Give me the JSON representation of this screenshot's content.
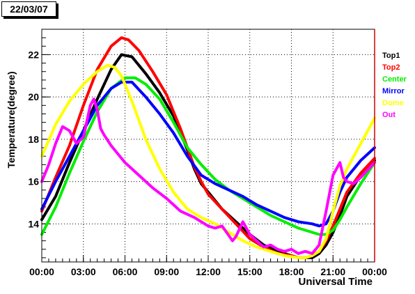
{
  "date_label": "22/03/07",
  "chart_data": {
    "type": "line",
    "title": "",
    "xlabel": "Universal Time",
    "ylabel": "Temperature(degree)",
    "xlim": [
      "00:00",
      "24:00"
    ],
    "ylim": [
      12.2,
      23.2
    ],
    "x_tick_labels": [
      "00:00",
      "03:00",
      "06:00",
      "09:00",
      "12:00",
      "15:00",
      "18:00",
      "21:00",
      "00:00"
    ],
    "y_ticks": [
      14,
      16,
      18,
      20,
      22
    ],
    "grid": true,
    "legend_position": "right",
    "series": [
      {
        "name": "Top1",
        "color": "#000000",
        "x": [
          "00:00",
          "01:00",
          "02:00",
          "03:00",
          "04:00",
          "05:00",
          "05:45",
          "06:30",
          "07:30",
          "08:30",
          "09:30",
          "10:00",
          "10:30",
          "11:00",
          "11:30",
          "12:00",
          "13:00",
          "14:00",
          "15:00",
          "16:00",
          "17:00",
          "18:00",
          "18:30",
          "19:00",
          "19:30",
          "20:00",
          "20:30",
          "21:00",
          "21:30",
          "22:00",
          "23:00",
          "24:00"
        ],
        "y": [
          14.2,
          15.3,
          16.9,
          18.4,
          19.9,
          21.3,
          22.0,
          21.9,
          21.1,
          20.2,
          19.1,
          18.3,
          17.5,
          16.6,
          15.9,
          15.5,
          14.7,
          14.1,
          13.5,
          13.0,
          12.7,
          12.5,
          12.4,
          12.4,
          12.4,
          12.6,
          13.0,
          13.6,
          14.4,
          15.3,
          16.3,
          17.0
        ]
      },
      {
        "name": "Top2",
        "color": "#ff0000",
        "x": [
          "00:00",
          "01:00",
          "02:00",
          "03:00",
          "04:00",
          "05:00",
          "05:45",
          "06:15",
          "07:00",
          "08:00",
          "09:00",
          "09:30",
          "10:00",
          "10:30",
          "11:00",
          "11:30",
          "12:00",
          "13:00",
          "14:00",
          "15:00",
          "16:00",
          "17:00",
          "18:00",
          "18:30",
          "19:00",
          "19:30",
          "20:00",
          "20:30",
          "21:00",
          "21:30",
          "22:00",
          "23:00",
          "24:00"
        ],
        "y": [
          14.6,
          16.2,
          17.7,
          19.6,
          21.3,
          22.4,
          22.8,
          22.7,
          22.2,
          21.2,
          20.1,
          19.3,
          18.5,
          17.6,
          16.7,
          16.0,
          15.4,
          14.7,
          14.0,
          13.3,
          12.9,
          12.6,
          12.5,
          12.4,
          12.4,
          12.5,
          12.7,
          13.2,
          13.9,
          14.7,
          15.5,
          16.4,
          17.1
        ]
      },
      {
        "name": "Center",
        "color": "#00ee00",
        "x": [
          "00:00",
          "01:00",
          "02:00",
          "03:00",
          "04:00",
          "05:00",
          "06:00",
          "06:45",
          "07:30",
          "08:30",
          "09:30",
          "10:30",
          "11:30",
          "12:30",
          "13:30",
          "14:30",
          "15:30",
          "16:30",
          "17:30",
          "18:30",
          "19:30",
          "20:00",
          "20:30",
          "21:00",
          "21:30",
          "22:00",
          "23:00",
          "24:00"
        ],
        "y": [
          13.5,
          14.8,
          16.4,
          17.9,
          19.3,
          20.4,
          20.9,
          20.9,
          20.6,
          19.9,
          18.8,
          17.6,
          16.8,
          16.1,
          15.6,
          15.2,
          14.8,
          14.4,
          14.1,
          13.8,
          13.6,
          13.5,
          13.5,
          13.7,
          14.2,
          14.8,
          15.9,
          16.9
        ]
      },
      {
        "name": "Mirror",
        "color": "#0000ff",
        "x": [
          "00:00",
          "01:00",
          "02:00",
          "03:00",
          "04:00",
          "05:00",
          "05:45",
          "06:30",
          "07:30",
          "08:30",
          "09:30",
          "10:30",
          "11:30",
          "12:30",
          "13:30",
          "14:30",
          "15:30",
          "16:30",
          "17:30",
          "18:30",
          "19:30",
          "20:00",
          "20:30",
          "21:00",
          "21:30",
          "22:00",
          "23:00",
          "24:00"
        ],
        "y": [
          14.7,
          16.0,
          17.2,
          18.4,
          19.6,
          20.4,
          20.7,
          20.7,
          20.0,
          19.2,
          18.3,
          17.2,
          16.3,
          15.9,
          15.6,
          15.3,
          14.9,
          14.6,
          14.3,
          14.1,
          14.0,
          13.9,
          14.0,
          14.6,
          15.5,
          16.2,
          17.0,
          17.6
        ]
      },
      {
        "name": "Dome",
        "color": "#ffff00",
        "x": [
          "00:00",
          "01:00",
          "02:00",
          "03:00",
          "04:00",
          "04:45",
          "05:15",
          "05:45",
          "06:30",
          "07:30",
          "08:30",
          "09:30",
          "10:30",
          "11:30",
          "12:30",
          "13:30",
          "14:30",
          "15:30",
          "16:30",
          "17:30",
          "18:30",
          "19:00",
          "19:30",
          "20:00",
          "20:30",
          "21:00",
          "21:30",
          "22:00",
          "23:00",
          "24:00"
        ],
        "y": [
          17.2,
          18.7,
          19.8,
          20.6,
          21.2,
          21.5,
          21.4,
          21.0,
          19.8,
          18.0,
          16.6,
          15.5,
          14.7,
          14.3,
          14.0,
          13.6,
          13.2,
          12.9,
          12.7,
          12.5,
          12.4,
          12.4,
          12.5,
          12.7,
          13.3,
          14.6,
          15.8,
          16.6,
          17.8,
          19.0
        ]
      },
      {
        "name": "Out",
        "color": "#ff00ff",
        "x": [
          "00:00",
          "00:30",
          "01:00",
          "01:30",
          "02:00",
          "02:30",
          "03:00",
          "03:30",
          "03:45",
          "04:00",
          "04:15",
          "04:30",
          "05:00",
          "05:30",
          "06:00",
          "06:30",
          "07:00",
          "08:00",
          "09:00",
          "10:00",
          "11:00",
          "12:00",
          "12:30",
          "13:00",
          "13:45",
          "14:00",
          "14:30",
          "15:00",
          "15:30",
          "16:00",
          "16:30",
          "17:00",
          "17:30",
          "18:00",
          "18:30",
          "19:00",
          "19:30",
          "20:00",
          "20:30",
          "21:00",
          "21:15",
          "21:30",
          "21:45",
          "22:00",
          "22:30",
          "23:00",
          "24:00"
        ],
        "y": [
          16.0,
          16.8,
          17.8,
          18.6,
          18.4,
          17.8,
          18.1,
          19.6,
          19.9,
          19.4,
          18.5,
          18.2,
          17.7,
          17.3,
          16.9,
          16.6,
          16.3,
          15.7,
          15.2,
          14.6,
          14.3,
          13.9,
          13.8,
          13.9,
          13.2,
          13.4,
          14.1,
          13.5,
          13.2,
          12.9,
          13.0,
          12.8,
          12.7,
          12.8,
          12.6,
          12.7,
          12.6,
          13.0,
          14.6,
          16.3,
          16.6,
          16.9,
          16.2,
          16.0,
          15.9,
          16.2,
          16.9
        ]
      }
    ]
  }
}
